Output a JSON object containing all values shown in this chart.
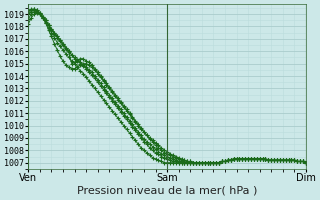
{
  "bg_color": "#cce8e8",
  "grid_major_color": "#aacccc",
  "grid_minor_color": "#bbdddd",
  "line_color": "#1a6b1a",
  "marker_color": "#1a6b1a",
  "xlabel": "Pression niveau de la mer( hPa )",
  "xlabel_fontsize": 8,
  "yticks": [
    1007,
    1008,
    1009,
    1010,
    1011,
    1012,
    1013,
    1014,
    1015,
    1016,
    1017,
    1018,
    1019
  ],
  "ylim": [
    1006.5,
    1019.8
  ],
  "xtick_labels": [
    "Ven",
    "Sam",
    "Dim"
  ],
  "xtick_positions": [
    0,
    48,
    96
  ],
  "xlim": [
    0,
    96
  ],
  "total_points": 97,
  "series": [
    [
      1019.0,
      1019.2,
      1019.3,
      1019.2,
      1019.0,
      1018.7,
      1018.4,
      1018.1,
      1017.7,
      1017.4,
      1017.1,
      1016.8,
      1016.5,
      1016.2,
      1015.9,
      1015.0,
      1015.1,
      1015.3,
      1015.4,
      1015.4,
      1015.2,
      1015.1,
      1014.9,
      1014.6,
      1014.3,
      1014.0,
      1013.7,
      1013.4,
      1013.1,
      1012.8,
      1012.5,
      1012.2,
      1011.9,
      1011.6,
      1011.3,
      1011.0,
      1010.7,
      1010.4,
      1010.1,
      1009.8,
      1009.5,
      1009.2,
      1008.9,
      1008.7,
      1008.4,
      1008.2,
      1008.0,
      1007.8,
      1007.7,
      1007.6,
      1007.5,
      1007.4,
      1007.3,
      1007.2,
      1007.2,
      1007.1,
      1007.1,
      1007.0,
      1007.0,
      1007.0,
      1007.0,
      1007.0,
      1007.0,
      1007.0,
      1007.0,
      1007.0,
      1007.0,
      1007.1,
      1007.1,
      1007.2,
      1007.2,
      1007.3,
      1007.3,
      1007.3,
      1007.3,
      1007.3,
      1007.3,
      1007.3,
      1007.3,
      1007.3,
      1007.3,
      1007.3,
      1007.3,
      1007.2,
      1007.2,
      1007.2,
      1007.2,
      1007.2,
      1007.2,
      1007.2,
      1007.2,
      1007.2,
      1007.2,
      1007.1,
      1007.1,
      1007.1,
      1007.0
    ],
    [
      1019.3,
      1019.4,
      1019.4,
      1019.3,
      1019.1,
      1018.8,
      1018.5,
      1018.1,
      1017.8,
      1017.5,
      1017.2,
      1016.9,
      1016.6,
      1016.3,
      1016.0,
      1015.7,
      1015.5,
      1015.3,
      1015.1,
      1014.9,
      1014.7,
      1014.5,
      1014.3,
      1014.0,
      1013.7,
      1013.4,
      1013.1,
      1012.8,
      1012.5,
      1012.2,
      1011.9,
      1011.6,
      1011.3,
      1011.0,
      1010.7,
      1010.4,
      1010.1,
      1009.8,
      1009.5,
      1009.2,
      1008.9,
      1008.7,
      1008.5,
      1008.3,
      1008.1,
      1007.9,
      1007.7,
      1007.6,
      1007.5,
      1007.4,
      1007.3,
      1007.2,
      1007.1,
      1007.1,
      1007.0,
      1007.0,
      1007.0,
      1007.0,
      1007.0,
      1007.0,
      1007.0,
      1007.0,
      1007.0,
      1007.0,
      1007.0,
      1007.0,
      1007.0,
      1007.1,
      1007.1,
      1007.2,
      1007.2,
      1007.3,
      1007.3,
      1007.3,
      1007.3,
      1007.3,
      1007.3,
      1007.3,
      1007.3,
      1007.3,
      1007.3,
      1007.3,
      1007.3,
      1007.2,
      1007.2,
      1007.2,
      1007.2,
      1007.2,
      1007.2,
      1007.2,
      1007.2,
      1007.2,
      1007.2,
      1007.1,
      1007.1,
      1007.1,
      1007.0
    ],
    [
      1019.1,
      1019.3,
      1019.4,
      1019.3,
      1019.1,
      1018.8,
      1018.5,
      1018.1,
      1017.8,
      1017.5,
      1017.2,
      1016.9,
      1016.6,
      1016.3,
      1016.0,
      1015.7,
      1015.4,
      1015.2,
      1015.0,
      1014.8,
      1014.6,
      1014.3,
      1014.1,
      1013.8,
      1013.5,
      1013.2,
      1012.9,
      1012.6,
      1012.3,
      1012.0,
      1011.7,
      1011.4,
      1011.1,
      1010.8,
      1010.5,
      1010.2,
      1009.9,
      1009.6,
      1009.3,
      1009.0,
      1008.7,
      1008.5,
      1008.2,
      1008.0,
      1007.8,
      1007.7,
      1007.5,
      1007.4,
      1007.3,
      1007.2,
      1007.1,
      1007.1,
      1007.0,
      1007.0,
      1007.0,
      1007.0,
      1007.0,
      1007.0,
      1007.0,
      1007.0,
      1007.0,
      1007.0,
      1007.0,
      1007.0,
      1007.0,
      1007.0,
      1007.0,
      1007.1,
      1007.1,
      1007.2,
      1007.2,
      1007.3,
      1007.3,
      1007.3,
      1007.3,
      1007.3,
      1007.3,
      1007.3,
      1007.3,
      1007.3,
      1007.3,
      1007.3,
      1007.3,
      1007.2,
      1007.2,
      1007.2,
      1007.2,
      1007.2,
      1007.2,
      1007.2,
      1007.2,
      1007.2,
      1007.2,
      1007.1,
      1007.1,
      1007.1,
      1007.0
    ],
    [
      1018.6,
      1019.0,
      1019.2,
      1019.2,
      1019.0,
      1018.7,
      1018.3,
      1017.9,
      1017.5,
      1017.1,
      1016.7,
      1016.4,
      1016.1,
      1015.8,
      1015.5,
      1015.2,
      1015.0,
      1014.7,
      1014.4,
      1014.2,
      1013.9,
      1013.6,
      1013.3,
      1013.0,
      1012.7,
      1012.4,
      1012.1,
      1011.8,
      1011.5,
      1011.2,
      1010.9,
      1010.6,
      1010.3,
      1010.0,
      1009.7,
      1009.4,
      1009.1,
      1008.8,
      1008.5,
      1008.2,
      1008.0,
      1007.8,
      1007.6,
      1007.4,
      1007.3,
      1007.2,
      1007.1,
      1007.0,
      1007.0,
      1007.0,
      1007.0,
      1007.0,
      1007.0,
      1007.0,
      1007.0,
      1007.0,
      1007.0,
      1007.0,
      1007.0,
      1007.0,
      1007.0,
      1007.0,
      1007.0,
      1007.0,
      1007.0,
      1007.0,
      1007.0,
      1007.1,
      1007.1,
      1007.2,
      1007.2,
      1007.3,
      1007.3,
      1007.3,
      1007.3,
      1007.3,
      1007.3,
      1007.3,
      1007.3,
      1007.3,
      1007.3,
      1007.3,
      1007.3,
      1007.2,
      1007.2,
      1007.2,
      1007.2,
      1007.2,
      1007.2,
      1007.2,
      1007.2,
      1007.2,
      1007.2,
      1007.1,
      1007.1,
      1007.1,
      1007.0
    ],
    [
      1018.2,
      1018.7,
      1019.0,
      1019.1,
      1019.0,
      1018.7,
      1018.3,
      1017.7,
      1017.2,
      1016.6,
      1016.1,
      1015.6,
      1015.2,
      1014.9,
      1014.7,
      1014.6,
      1014.6,
      1014.7,
      1014.9,
      1015.0,
      1015.0,
      1014.9,
      1014.7,
      1014.5,
      1014.2,
      1013.9,
      1013.6,
      1013.3,
      1013.0,
      1012.7,
      1012.4,
      1012.1,
      1011.8,
      1011.5,
      1011.2,
      1010.9,
      1010.6,
      1010.3,
      1010.0,
      1009.7,
      1009.5,
      1009.2,
      1009.0,
      1008.8,
      1008.6,
      1008.4,
      1008.2,
      1008.0,
      1007.9,
      1007.7,
      1007.6,
      1007.5,
      1007.4,
      1007.3,
      1007.2,
      1007.1,
      1007.1,
      1007.0,
      1007.0,
      1007.0,
      1007.0,
      1007.0,
      1007.0,
      1007.0,
      1007.0,
      1007.0,
      1007.0,
      1007.1,
      1007.1,
      1007.2,
      1007.2,
      1007.3,
      1007.3,
      1007.3,
      1007.3,
      1007.3,
      1007.3,
      1007.3,
      1007.3,
      1007.3,
      1007.3,
      1007.3,
      1007.3,
      1007.2,
      1007.2,
      1007.2,
      1007.2,
      1007.2,
      1007.2,
      1007.2,
      1007.2,
      1007.2,
      1007.2,
      1007.1,
      1007.1,
      1007.1,
      1007.0
    ]
  ]
}
